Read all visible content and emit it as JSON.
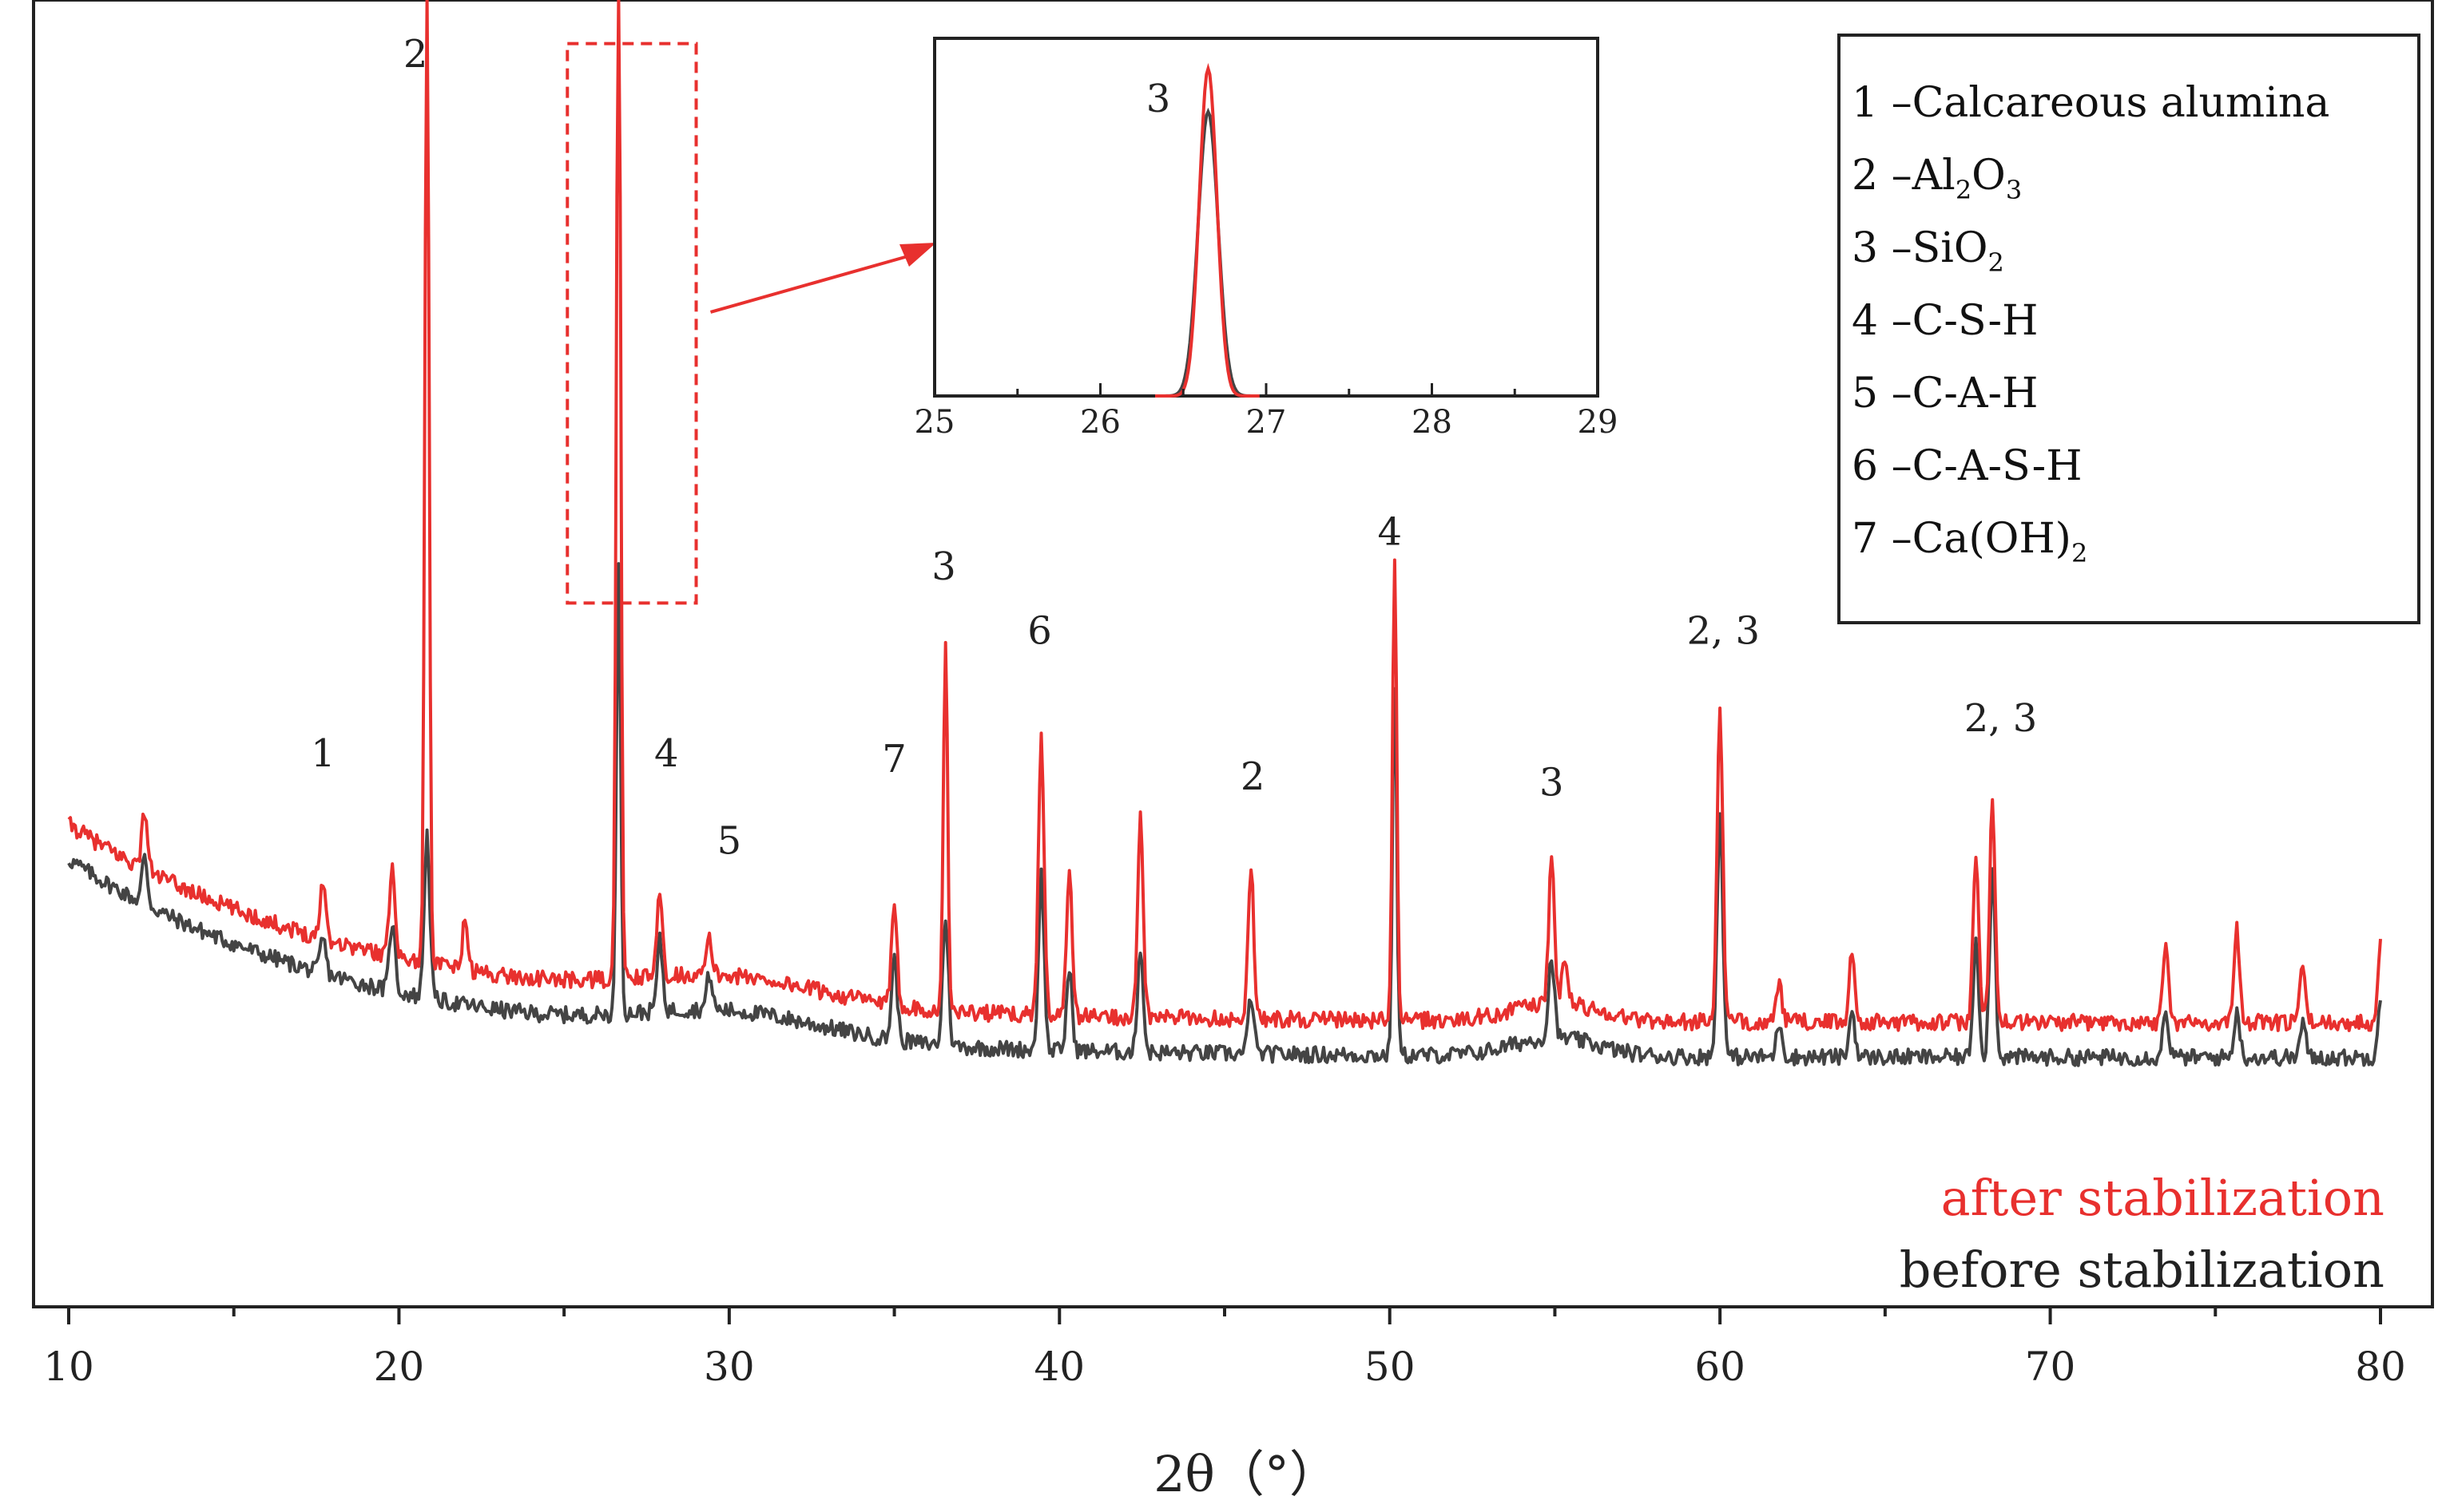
{
  "chart_data": {
    "type": "line",
    "title": "",
    "xlabel": "2θ（°）",
    "ylabel": "",
    "xlim": [
      10,
      80
    ],
    "ylim": [
      0,
      100
    ],
    "x_ticks": [
      10,
      20,
      30,
      40,
      50,
      60,
      70,
      80
    ],
    "colors": {
      "after": "#e8302e",
      "before": "#444444",
      "highlight": "#e8302e"
    },
    "series": [
      {
        "name": "after stabilization",
        "color": "#e8302e",
        "offset": 3,
        "peaks": [
          {
            "x": 12.3,
            "h": 5
          },
          {
            "x": 17.7,
            "h": 5
          },
          {
            "x": 19.8,
            "h": 8
          },
          {
            "x": 20.85,
            "h": 85
          },
          {
            "x": 22.0,
            "h": 4
          },
          {
            "x": 26.65,
            "h": 92
          },
          {
            "x": 27.9,
            "h": 7
          },
          {
            "x": 29.4,
            "h": 3
          },
          {
            "x": 35.0,
            "h": 8
          },
          {
            "x": 36.55,
            "h": 32
          },
          {
            "x": 39.45,
            "h": 24
          },
          {
            "x": 40.3,
            "h": 12
          },
          {
            "x": 42.45,
            "h": 17
          },
          {
            "x": 45.8,
            "h": 13
          },
          {
            "x": 50.15,
            "h": 40
          },
          {
            "x": 54.9,
            "h": 12
          },
          {
            "x": 55.3,
            "h": 4
          },
          {
            "x": 60.0,
            "h": 27
          },
          {
            "x": 61.8,
            "h": 3
          },
          {
            "x": 64.0,
            "h": 6
          },
          {
            "x": 67.75,
            "h": 14
          },
          {
            "x": 68.25,
            "h": 19
          },
          {
            "x": 73.5,
            "h": 7
          },
          {
            "x": 75.65,
            "h": 8
          },
          {
            "x": 77.65,
            "h": 5
          },
          {
            "x": 80.0,
            "h": 7
          }
        ]
      },
      {
        "name": "before stabilization",
        "color": "#444444",
        "offset": 0,
        "peaks": [
          {
            "x": 12.3,
            "h": 4
          },
          {
            "x": 17.7,
            "h": 3
          },
          {
            "x": 19.8,
            "h": 6
          },
          {
            "x": 20.85,
            "h": 14
          },
          {
            "x": 26.65,
            "h": 38
          },
          {
            "x": 27.9,
            "h": 6
          },
          {
            "x": 29.4,
            "h": 3
          },
          {
            "x": 35.0,
            "h": 7
          },
          {
            "x": 36.55,
            "h": 11
          },
          {
            "x": 39.45,
            "h": 15
          },
          {
            "x": 40.3,
            "h": 7
          },
          {
            "x": 42.45,
            "h": 9
          },
          {
            "x": 45.8,
            "h": 5
          },
          {
            "x": 50.15,
            "h": 32
          },
          {
            "x": 54.9,
            "h": 7
          },
          {
            "x": 60.0,
            "h": 21
          },
          {
            "x": 61.8,
            "h": 3
          },
          {
            "x": 64.0,
            "h": 4
          },
          {
            "x": 67.75,
            "h": 10
          },
          {
            "x": 68.25,
            "h": 16
          },
          {
            "x": 73.5,
            "h": 4
          },
          {
            "x": 75.65,
            "h": 4
          },
          {
            "x": 77.65,
            "h": 3
          },
          {
            "x": 80.0,
            "h": 5
          }
        ]
      }
    ],
    "peak_annotations": [
      {
        "x": 17.7,
        "y": 37,
        "text": "1"
      },
      {
        "x": 20.5,
        "y": 97,
        "text": "2"
      },
      {
        "x": 28.1,
        "y": 37,
        "text": "4"
      },
      {
        "x": 30.0,
        "y": 29.5,
        "text": "5"
      },
      {
        "x": 35.0,
        "y": 36.5,
        "text": "7"
      },
      {
        "x": 36.5,
        "y": 53,
        "text": "3"
      },
      {
        "x": 39.4,
        "y": 47.5,
        "text": "6"
      },
      {
        "x": 45.85,
        "y": 35,
        "text": "2"
      },
      {
        "x": 50.0,
        "y": 56,
        "text": "4"
      },
      {
        "x": 54.9,
        "y": 34.5,
        "text": "3"
      },
      {
        "x": 60.1,
        "y": 47.5,
        "text": "2, 3"
      },
      {
        "x": 68.5,
        "y": 40,
        "text": "2, 3"
      }
    ],
    "highlight_box": {
      "x_range": [
        25.1,
        29.0
      ],
      "y_range": [
        51,
        99
      ]
    },
    "inset": {
      "xlim": [
        25,
        29
      ],
      "x_ticks": [
        25,
        26,
        27,
        28,
        29
      ],
      "peak_label": "3",
      "peak_center": 26.65
    },
    "legend": {
      "placement": "top-right",
      "entries": [
        {
          "num": "1",
          "text": "Calcareous alumina",
          "sub": ""
        },
        {
          "num": "2",
          "text": "Al",
          "sub": "2",
          "text2": "O",
          "sub2": "3"
        },
        {
          "num": "3",
          "text": "SiO",
          "sub": "2"
        },
        {
          "num": "4",
          "text": "C-S-H",
          "sub": ""
        },
        {
          "num": "5",
          "text": "C-A-H",
          "sub": ""
        },
        {
          "num": "6",
          "text": "C-A-S-H",
          "sub": ""
        },
        {
          "num": "7",
          "text": "Ca(OH)",
          "sub": "2"
        }
      ]
    },
    "series_labels": {
      "after": "after stabilization",
      "before": "before stabilization"
    }
  }
}
